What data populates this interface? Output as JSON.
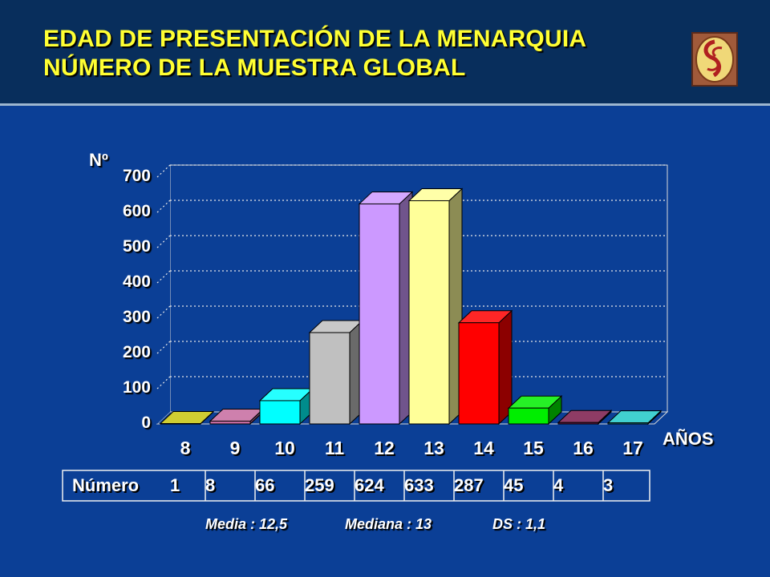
{
  "title": {
    "line1": "EDAD DE PRESENTACIÓN DE LA MENARQUIA",
    "line2": "NÚMERO DE LA MUESTRA GLOBAL"
  },
  "colors": {
    "background": "#0b3f96",
    "header": "#082e5c",
    "title": "#ffff33"
  },
  "logo": {
    "icon": "spiral-emblem-icon"
  },
  "chart_data": {
    "type": "bar",
    "ylabel": "Nº",
    "xlabel": "AÑOS",
    "ylim": [
      0,
      700
    ],
    "yticks": [
      "0",
      "100",
      "200",
      "300",
      "400",
      "500",
      "600",
      "700"
    ],
    "categories": [
      "8",
      "9",
      "10",
      "11",
      "12",
      "13",
      "14",
      "15",
      "16",
      "17"
    ],
    "values": [
      1,
      8,
      66,
      259,
      624,
      633,
      287,
      45,
      4,
      3
    ],
    "bar_colors": [
      "#c8c40e",
      "#c56a9e",
      "#00ffff",
      "#c0c0c0",
      "#cc99ff",
      "#ffff99",
      "#ff0000",
      "#00ee00",
      "#7a1a4a",
      "#1fc8c8"
    ],
    "grid": true,
    "table": {
      "label": "Número",
      "values": [
        "1",
        "8",
        "66",
        "259",
        "624",
        "633",
        "287",
        "45",
        "4",
        "3"
      ]
    }
  },
  "stats": {
    "media": "Media : 12,5",
    "mediana": "Mediana : 13",
    "ds": "DS : 1,1"
  }
}
